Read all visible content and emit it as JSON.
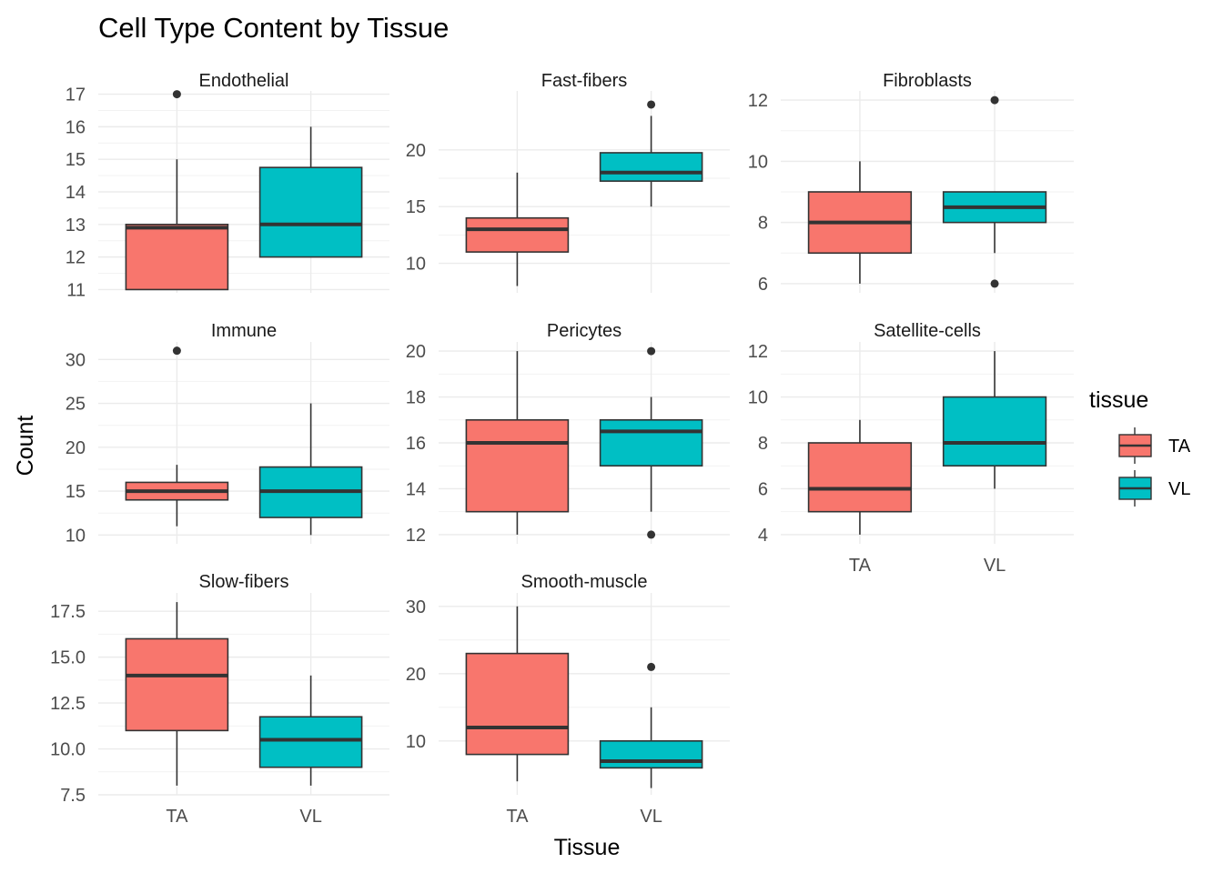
{
  "chart_data": {
    "type": "boxplot",
    "title": "Cell Type Content by Tissue",
    "xlabel": "Tissue",
    "ylabel": "Count",
    "categories": [
      "TA",
      "VL"
    ],
    "legend": {
      "title": "tissue",
      "position": "right",
      "entries": [
        {
          "label": "TA",
          "color": "#F8766D"
        },
        {
          "label": "VL",
          "color": "#00BFC4"
        }
      ]
    },
    "grid": true,
    "facets": [
      {
        "name": "Endothelial",
        "ylim": [
          10.9,
          17.1
        ],
        "yticks": [
          11,
          12,
          13,
          14,
          15,
          16,
          17
        ],
        "ytick_labels": [
          "11",
          "12",
          "13",
          "14",
          "15",
          "16",
          "17"
        ],
        "boxes": [
          {
            "category": "TA",
            "lower": 11.0,
            "q1": 11.0,
            "median": 12.9,
            "q3": 13.0,
            "upper": 15.0,
            "outliers": [
              17.0
            ]
          },
          {
            "category": "VL",
            "lower": 12.0,
            "q1": 12.0,
            "median": 13.0,
            "q3": 14.75,
            "upper": 16.0,
            "outliers": []
          }
        ]
      },
      {
        "name": "Fast-fibers",
        "ylim": [
          7.4,
          25.2
        ],
        "yticks": [
          10,
          15,
          20
        ],
        "ytick_labels": [
          "10",
          "15",
          "20"
        ],
        "boxes": [
          {
            "category": "TA",
            "lower": 8.0,
            "q1": 11.0,
            "median": 13.0,
            "q3": 14.0,
            "upper": 18.0,
            "outliers": []
          },
          {
            "category": "VL",
            "lower": 15.0,
            "q1": 17.25,
            "median": 18.0,
            "q3": 19.75,
            "upper": 23.0,
            "outliers": [
              24.0
            ]
          }
        ]
      },
      {
        "name": "Fibroblasts",
        "ylim": [
          5.7,
          12.3
        ],
        "yticks": [
          6,
          8,
          10,
          12
        ],
        "ytick_labels": [
          "6",
          "8",
          "10",
          "12"
        ],
        "boxes": [
          {
            "category": "TA",
            "lower": 6.0,
            "q1": 7.0,
            "median": 8.0,
            "q3": 9.0,
            "upper": 10.0,
            "outliers": []
          },
          {
            "category": "VL",
            "lower": 7.0,
            "q1": 8.0,
            "median": 8.5,
            "q3": 9.0,
            "upper": 9.0,
            "outliers": [
              6.0,
              12.0
            ]
          }
        ]
      },
      {
        "name": "Immune",
        "ylim": [
          9.0,
          32.0
        ],
        "yticks": [
          10,
          15,
          20,
          25,
          30
        ],
        "ytick_labels": [
          "10",
          "15",
          "20",
          "25",
          "30"
        ],
        "boxes": [
          {
            "category": "TA",
            "lower": 11.0,
            "q1": 14.0,
            "median": 15.0,
            "q3": 16.0,
            "upper": 18.0,
            "outliers": [
              31.0
            ]
          },
          {
            "category": "VL",
            "lower": 10.0,
            "q1": 12.0,
            "median": 15.0,
            "q3": 17.75,
            "upper": 25.0,
            "outliers": []
          }
        ]
      },
      {
        "name": "Pericytes",
        "ylim": [
          11.6,
          20.4
        ],
        "yticks": [
          12,
          14,
          16,
          18,
          20
        ],
        "ytick_labels": [
          "12",
          "14",
          "16",
          "18",
          "20"
        ],
        "boxes": [
          {
            "category": "TA",
            "lower": 12.0,
            "q1": 13.0,
            "median": 16.0,
            "q3": 17.0,
            "upper": 20.0,
            "outliers": []
          },
          {
            "category": "VL",
            "lower": 13.0,
            "q1": 15.0,
            "median": 16.5,
            "q3": 17.0,
            "upper": 18.0,
            "outliers": [
              12.0,
              20.0
            ]
          }
        ]
      },
      {
        "name": "Satellite-cells",
        "ylim": [
          3.6,
          12.4
        ],
        "yticks": [
          4,
          6,
          8,
          10,
          12
        ],
        "ytick_labels": [
          "4",
          "6",
          "8",
          "10",
          "12"
        ],
        "boxes": [
          {
            "category": "TA",
            "lower": 4.0,
            "q1": 5.0,
            "median": 6.0,
            "q3": 8.0,
            "upper": 9.0,
            "outliers": []
          },
          {
            "category": "VL",
            "lower": 6.0,
            "q1": 7.0,
            "median": 8.0,
            "q3": 10.0,
            "upper": 12.0,
            "outliers": []
          }
        ]
      },
      {
        "name": "Slow-fibers",
        "ylim": [
          7.5,
          18.5
        ],
        "yticks": [
          7.5,
          10.0,
          12.5,
          15.0,
          17.5
        ],
        "ytick_labels": [
          "7.5",
          "10.0",
          "12.5",
          "15.0",
          "17.5"
        ],
        "boxes": [
          {
            "category": "TA",
            "lower": 8.0,
            "q1": 11.0,
            "median": 14.0,
            "q3": 16.0,
            "upper": 18.0,
            "outliers": []
          },
          {
            "category": "VL",
            "lower": 8.0,
            "q1": 9.0,
            "median": 10.5,
            "q3": 11.75,
            "upper": 14.0,
            "outliers": []
          }
        ]
      },
      {
        "name": "Smooth-muscle",
        "ylim": [
          2.0,
          32.0
        ],
        "yticks": [
          10,
          20,
          30
        ],
        "ytick_labels": [
          "10",
          "20",
          "30"
        ],
        "boxes": [
          {
            "category": "TA",
            "lower": 4.0,
            "q1": 8.0,
            "median": 12.0,
            "q3": 23.0,
            "upper": 30.0,
            "outliers": []
          },
          {
            "category": "VL",
            "lower": 3.0,
            "q1": 6.0,
            "median": 7.0,
            "q3": 10.0,
            "upper": 15.0,
            "outliers": [
              21.0
            ]
          }
        ]
      }
    ]
  },
  "colors": {
    "TA": "#F8766D",
    "VL": "#00BFC4",
    "outline": "#333333",
    "grid_major": "#EBEBEB",
    "grid_minor": "#F2F2F2"
  }
}
